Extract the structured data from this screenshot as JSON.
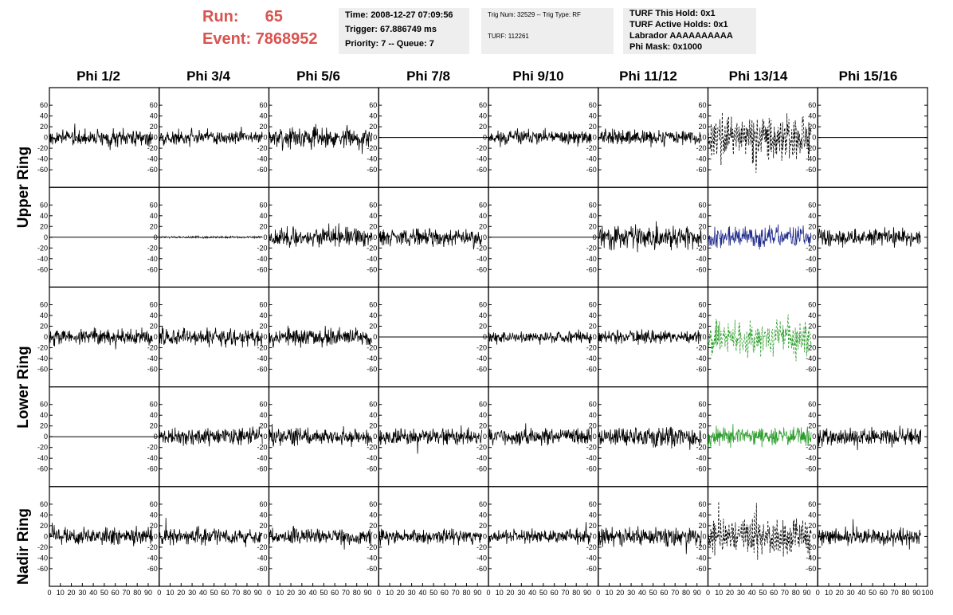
{
  "header": {
    "run_label": "Run:",
    "run_value": "65",
    "event_label": "Event:",
    "event_value": "7868952",
    "time_line": "Time: 2008-12-27 07:09:56",
    "trigger_line": "Trigger: 67.886749 ms",
    "priority_line": "Priority: 7 -- Queue: 7",
    "trig_line": "Trig Num: 32529 -- Trig Type: RF",
    "turf_line": "TURF: 112261",
    "hold_line": "TURF This Hold: 0x1",
    "active_line": "TURF Active Holds: 0x1",
    "labrador_line": "Labrador AAAAAAAAAA",
    "phimask_line": "Phi Mask: 0x1000"
  },
  "colors": {
    "run_text": "#d9534f",
    "info_bg": "#eeeeee",
    "trace": "#000000",
    "blue_trace": "#1f2a8a",
    "green_trace": "#2e9e2e"
  },
  "chart_data": {
    "type": "line",
    "columns": [
      "Phi 1/2",
      "Phi 3/4",
      "Phi 5/6",
      "Phi 7/8",
      "Phi 9/10",
      "Phi 11/12",
      "Phi 13/14",
      "Phi 15/16"
    ],
    "rows": [
      {
        "label": "Upper Ring",
        "sub_rows": 2
      },
      {
        "label": "Lower Ring",
        "sub_rows": 2
      },
      {
        "label": "Nadir Ring",
        "sub_rows": 1
      }
    ],
    "y_ticks": [
      60,
      40,
      20,
      0,
      -20,
      -40,
      -60
    ],
    "y_tick_labels": [
      "60",
      "40",
      "20",
      "0",
      "-20",
      "-40",
      "-60"
    ],
    "ylim": [
      -75,
      75
    ],
    "x_ticks": [
      0,
      10,
      20,
      30,
      40,
      50,
      60,
      70,
      80,
      90,
      100
    ],
    "x_tick_labels": [
      "0",
      "10",
      "20",
      "30",
      "40",
      "50",
      "60",
      "70",
      "80",
      "90",
      "100"
    ],
    "xlim": [
      0,
      100
    ],
    "x_extent": 94,
    "panels": [
      [
        {
          "amp": 16,
          "seed": 3
        },
        {
          "amp": 14,
          "seed": 5
        },
        {
          "amp": 20,
          "seed": 7
        },
        {
          "amp": 0
        },
        {
          "amp": 14,
          "seed": 11
        },
        {
          "amp": 14,
          "seed": 13
        },
        {
          "amp": 40,
          "style": "dashed",
          "color": "#000000",
          "seed": 17
        },
        {
          "amp": 0
        }
      ],
      [
        {
          "amp": 0
        },
        {
          "amp": 2,
          "seed": 19
        },
        {
          "amp": 18,
          "seed": 23
        },
        {
          "amp": 16,
          "seed": 29
        },
        {
          "amp": 0
        },
        {
          "amp": 22,
          "seed": 31
        },
        {
          "amp": 20,
          "color": "#1f2a8a",
          "seed": 37
        },
        {
          "amp": 16,
          "seed": 41
        }
      ],
      [
        {
          "amp": 15,
          "seed": 43
        },
        {
          "amp": 18,
          "seed": 47
        },
        {
          "amp": 18,
          "seed": 53
        },
        {
          "amp": 0
        },
        {
          "amp": 12,
          "seed": 59
        },
        {
          "amp": 14,
          "seed": 61
        },
        {
          "amp": 34,
          "style": "dashed",
          "color": "#2e9e2e",
          "seed": 67
        },
        {
          "amp": 0
        }
      ],
      [
        {
          "amp": 0
        },
        {
          "amp": 16,
          "seed": 71
        },
        {
          "amp": 17,
          "seed": 73
        },
        {
          "amp": 16,
          "seed": 79
        },
        {
          "amp": 15,
          "seed": 83
        },
        {
          "amp": 20,
          "seed": 89
        },
        {
          "amp": 18,
          "color": "#2e9e2e",
          "seed": 97
        },
        {
          "amp": 17,
          "seed": 101
        }
      ],
      [
        {
          "amp": 16,
          "seed": 103
        },
        {
          "amp": 15,
          "seed": 107
        },
        {
          "amp": 15,
          "seed": 109
        },
        {
          "amp": 14,
          "seed": 113
        },
        {
          "amp": 13,
          "seed": 127
        },
        {
          "amp": 18,
          "seed": 131
        },
        {
          "amp": 36,
          "style": "dashed",
          "color": "#000000",
          "seed": 137
        },
        {
          "amp": 16,
          "seed": 139
        }
      ]
    ]
  }
}
